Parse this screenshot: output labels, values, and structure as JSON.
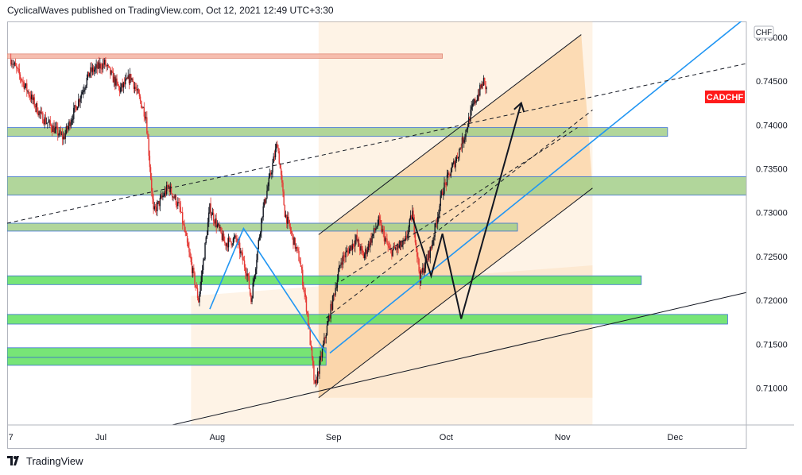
{
  "header": {
    "text": "CyclicalWaves published on TradingView.com, Oct 12, 2021 12:49 UTC+3:30"
  },
  "footer": {
    "brand": "TradingView",
    "logo_icon": "tradingview-logo-icon"
  },
  "chart_data": {
    "type": "candlestick",
    "symbol_label": "CADCHF",
    "currency_label": "CHF",
    "y_ticks": [
      "0.75000",
      "0.74500",
      "0.74000",
      "0.73500",
      "0.73000",
      "0.72500",
      "0.72000",
      "0.71500",
      "0.71000"
    ],
    "y_tick_values": [
      0.75,
      0.745,
      0.74,
      0.735,
      0.73,
      0.725,
      0.72,
      0.715,
      0.71
    ],
    "ylim": [
      0.7058,
      0.7518
    ],
    "x_ticks": [
      "7",
      "Jul",
      "Aug",
      "Sep",
      "Oct",
      "Nov",
      "Dec"
    ],
    "x_range": [
      "2021-06-06",
      "2021-12-20"
    ],
    "last_price": 0.7437,
    "colors": {
      "up_candle": "#131722",
      "down_candle": "#e53935",
      "zone_orange": "#f9c78b",
      "green_zone": "#5fe05f",
      "pale_green": "#a3cf8a",
      "salmon_zone": "#f4b3a2",
      "blue_line": "#2196f3",
      "price_label": "#ff1a1a",
      "dark_line": "#131722"
    },
    "price_series_approx": [
      [
        "2021-06-07",
        0.7475
      ],
      [
        "2021-06-15",
        0.741
      ],
      [
        "2021-06-21",
        0.7385
      ],
      [
        "2021-06-28",
        0.746
      ],
      [
        "2021-07-02",
        0.747
      ],
      [
        "2021-07-06",
        0.744
      ],
      [
        "2021-07-09",
        0.7455
      ],
      [
        "2021-07-13",
        0.741
      ],
      [
        "2021-07-15",
        0.73
      ],
      [
        "2021-07-19",
        0.733
      ],
      [
        "2021-07-22",
        0.7305
      ],
      [
        "2021-07-27",
        0.72
      ],
      [
        "2021-07-30",
        0.7305
      ],
      [
        "2021-08-03",
        0.7265
      ],
      [
        "2021-08-06",
        0.727
      ],
      [
        "2021-08-09",
        0.723
      ],
      [
        "2021-08-10",
        0.72
      ],
      [
        "2021-08-13",
        0.73
      ],
      [
        "2021-08-17",
        0.738
      ],
      [
        "2021-08-19",
        0.73
      ],
      [
        "2021-08-23",
        0.7245
      ],
      [
        "2021-08-25",
        0.7185
      ],
      [
        "2021-08-27",
        0.71
      ],
      [
        "2021-08-31",
        0.7185
      ],
      [
        "2021-09-03",
        0.7245
      ],
      [
        "2021-09-07",
        0.727
      ],
      [
        "2021-09-09",
        0.725
      ],
      [
        "2021-09-13",
        0.729
      ],
      [
        "2021-09-16",
        0.7255
      ],
      [
        "2021-09-20",
        0.7265
      ],
      [
        "2021-09-22",
        0.73
      ],
      [
        "2021-09-24",
        0.7225
      ],
      [
        "2021-09-27",
        0.726
      ],
      [
        "2021-09-30",
        0.7325
      ],
      [
        "2021-10-04",
        0.7365
      ],
      [
        "2021-10-06",
        0.739
      ],
      [
        "2021-10-08",
        0.742
      ],
      [
        "2021-10-11",
        0.745
      ],
      [
        "2021-10-12",
        0.7437
      ]
    ],
    "horizontal_zones": [
      {
        "name": "salmon-resistance",
        "y1": 0.7481,
        "y2": 0.7476,
        "from": "2021-06-06",
        "to": "2021-09-30",
        "color": "salmon"
      },
      {
        "name": "green-zone-0.7395",
        "y1": 0.7397,
        "y2": 0.7387,
        "from": "2021-06-06",
        "to": "2021-11-29",
        "color": "pale"
      },
      {
        "name": "green-zone-0.7330",
        "y1": 0.7341,
        "y2": 0.732,
        "from": "2021-06-06",
        "to": "2021-12-20",
        "color": "pale"
      },
      {
        "name": "green-zone-0.7283",
        "y1": 0.7288,
        "y2": 0.7279,
        "from": "2021-06-06",
        "to": "2021-10-20",
        "color": "pale"
      },
      {
        "name": "green-zone-0.7222",
        "y1": 0.7228,
        "y2": 0.7218,
        "from": "2021-06-06",
        "to": "2021-11-22",
        "color": "bright"
      },
      {
        "name": "green-zone-0.7180",
        "y1": 0.7184,
        "y2": 0.7173,
        "from": "2021-06-06",
        "to": "2021-12-15",
        "color": "bright"
      },
      {
        "name": "green-zone-0.7140",
        "y1": 0.7146,
        "y2": 0.7135,
        "from": "2021-06-06",
        "to": "2021-08-30",
        "color": "bright"
      },
      {
        "name": "green-zone-0.7130",
        "y1": 0.7135,
        "y2": 0.7126,
        "from": "2021-06-06",
        "to": "2021-08-30",
        "color": "bright"
      }
    ],
    "lines": [
      {
        "name": "rising-blue-line",
        "points": [
          [
            "2021-08-31",
            0.714
          ],
          [
            "2021-12-20",
            0.7523
          ]
        ],
        "style": "solid",
        "color": "blue"
      },
      {
        "name": "blue-swing-line",
        "points": [
          [
            "2021-07-30",
            0.719
          ],
          [
            "2021-08-08",
            0.7282
          ],
          [
            "2021-08-30",
            0.714
          ]
        ],
        "style": "solid",
        "color": "blue"
      },
      {
        "name": "lower-support-line",
        "points": [
          [
            "2021-07-20",
            0.7058
          ],
          [
            "2021-12-20",
            0.7209
          ]
        ],
        "style": "solid",
        "color": "dark"
      },
      {
        "name": "upper-dashed-trend",
        "points": [
          [
            "2021-06-06",
            0.7288
          ],
          [
            "2021-12-20",
            0.747
          ]
        ],
        "style": "dashed",
        "color": "dark"
      },
      {
        "name": "channel-upper",
        "points": [
          [
            "2021-08-28",
            0.7275
          ],
          [
            "2021-11-06",
            0.7503
          ]
        ],
        "style": "solid",
        "color": "dark"
      },
      {
        "name": "channel-lower",
        "points": [
          [
            "2021-08-28",
            0.7089
          ],
          [
            "2021-11-09",
            0.7328
          ]
        ],
        "style": "solid",
        "color": "dark"
      },
      {
        "name": "channel-midline-dashed",
        "points": [
          [
            "2021-08-30",
            0.718
          ],
          [
            "2021-11-09",
            0.7417
          ]
        ],
        "style": "dashed",
        "color": "dark"
      },
      {
        "name": "inner-dashed-line",
        "points": [
          [
            "2021-09-03",
            0.7222
          ],
          [
            "2021-11-05",
            0.7397
          ]
        ],
        "style": "dashed",
        "color": "dark"
      },
      {
        "name": "projection-path",
        "points": [
          [
            "2021-09-22",
            0.7295
          ],
          [
            "2021-09-27",
            0.7228
          ],
          [
            "2021-09-30",
            0.7276
          ],
          [
            "2021-10-05",
            0.7179
          ],
          [
            "2021-10-21",
            0.7425
          ]
        ],
        "style": "solid",
        "color": "dark",
        "arrow": true
      }
    ],
    "channel_fill": {
      "top": [
        [
          "2021-08-28",
          0.7275
        ],
        [
          "2021-11-06",
          0.7503
        ]
      ],
      "bottom": [
        [
          "2021-08-28",
          0.7089
        ],
        [
          "2021-11-09",
          0.7328
        ]
      ]
    }
  }
}
